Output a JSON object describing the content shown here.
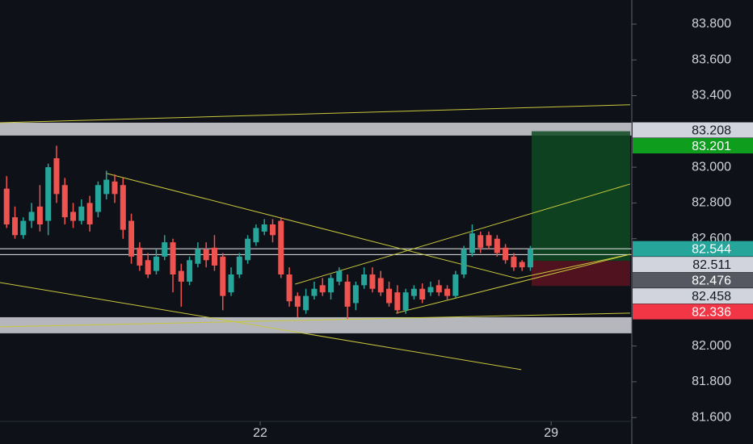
{
  "chart_data": {
    "type": "candlestick",
    "background": "#0f1118",
    "up_color": "#26a69a",
    "down_color": "#ef5350",
    "xlim": [
      15.74,
      30.94
    ],
    "xticks": [
      22,
      29
    ],
    "ylim": [
      81.452,
      83.935
    ],
    "yticks": [
      {
        "value": 83.8,
        "label": "83.800"
      },
      {
        "value": 83.6,
        "label": "83.600"
      },
      {
        "value": 83.4,
        "label": "83.400"
      },
      {
        "value": 83.0,
        "label": "83.000"
      },
      {
        "value": 82.8,
        "label": "82.800"
      },
      {
        "value": 82.6,
        "label": "82.600"
      },
      {
        "value": 82.0,
        "label": "82.000"
      },
      {
        "value": 81.8,
        "label": "81.800"
      },
      {
        "value": 81.6,
        "label": "81.600"
      }
    ],
    "x": [
      15.9,
      16.1,
      16.3,
      16.5,
      16.7,
      16.9,
      17.1,
      17.3,
      17.5,
      17.7,
      17.9,
      18.1,
      18.3,
      18.5,
      18.7,
      18.9,
      19.1,
      19.3,
      19.5,
      19.7,
      19.9,
      20.1,
      20.3,
      20.5,
      20.7,
      20.9,
      21.1,
      21.3,
      21.5,
      21.7,
      21.9,
      22.1,
      22.3,
      22.5,
      22.7,
      22.9,
      23.1,
      23.3,
      23.5,
      23.7,
      23.9,
      24.1,
      24.3,
      24.5,
      24.7,
      24.9,
      25.1,
      25.3,
      25.5,
      25.7,
      25.9,
      26.1,
      26.3,
      26.5,
      26.7,
      26.9,
      27.1,
      27.3,
      27.5,
      27.7,
      27.9,
      28.1,
      28.3,
      28.5
    ],
    "open": [
      82.88,
      82.72,
      82.62,
      82.7,
      82.78,
      82.7,
      83.05,
      82.9,
      82.75,
      82.7,
      82.8,
      82.75,
      82.85,
      82.92,
      82.9,
      82.7,
      82.55,
      82.48,
      82.42,
      82.5,
      82.58,
      82.42,
      82.36,
      82.46,
      82.54,
      82.55,
      82.5,
      82.3,
      82.4,
      82.48,
      82.58,
      82.64,
      82.68,
      82.7,
      82.4,
      82.28,
      82.2,
      82.28,
      82.34,
      82.3,
      82.36,
      82.36,
      82.24,
      82.34,
      82.4,
      82.38,
      82.32,
      82.3,
      82.2,
      82.28,
      82.32,
      82.3,
      82.34,
      82.32,
      82.28,
      82.4,
      82.52,
      82.62,
      82.62,
      82.6,
      82.55,
      82.5,
      82.47,
      82.44
    ],
    "high": [
      82.95,
      82.78,
      82.72,
      82.8,
      82.9,
      83.02,
      83.12,
      82.94,
      82.8,
      82.82,
      82.84,
      82.92,
      82.98,
      82.96,
      82.94,
      82.74,
      82.58,
      82.52,
      82.54,
      82.62,
      82.6,
      82.46,
      82.5,
      82.58,
      82.58,
      82.62,
      82.52,
      82.44,
      82.52,
      82.62,
      82.68,
      82.71,
      82.71,
      82.72,
      82.44,
      82.3,
      82.32,
      82.36,
      82.38,
      82.4,
      82.44,
      82.4,
      82.36,
      82.44,
      82.44,
      82.42,
      82.36,
      82.34,
      82.32,
      82.34,
      82.35,
      82.36,
      82.37,
      82.34,
      82.42,
      82.56,
      82.68,
      82.64,
      82.64,
      82.62,
      82.57,
      82.52,
      82.48,
      82.56
    ],
    "low": [
      82.66,
      82.6,
      82.6,
      82.66,
      82.64,
      82.62,
      82.8,
      82.68,
      82.66,
      82.68,
      82.64,
      82.72,
      82.82,
      82.8,
      82.6,
      82.46,
      82.42,
      82.38,
      82.4,
      82.48,
      82.3,
      82.22,
      82.34,
      82.44,
      82.44,
      82.42,
      82.2,
      82.28,
      82.38,
      82.46,
      82.56,
      82.62,
      82.58,
      82.38,
      82.22,
      82.16,
      82.18,
      82.26,
      82.28,
      82.26,
      82.34,
      82.15,
      82.2,
      82.32,
      82.3,
      82.28,
      82.22,
      82.18,
      82.18,
      82.26,
      82.24,
      82.28,
      82.28,
      82.26,
      82.27,
      82.38,
      82.5,
      82.52,
      82.54,
      82.5,
      82.46,
      82.42,
      82.42,
      82.42
    ],
    "close": [
      82.68,
      82.62,
      82.7,
      82.75,
      82.68,
      83.0,
      82.85,
      82.72,
      82.7,
      82.78,
      82.68,
      82.9,
      82.93,
      82.85,
      82.65,
      82.5,
      82.45,
      82.4,
      82.5,
      82.58,
      82.4,
      82.36,
      82.48,
      82.54,
      82.48,
      82.45,
      82.28,
      82.4,
      82.5,
      82.6,
      82.66,
      82.68,
      82.62,
      82.4,
      82.25,
      82.22,
      82.28,
      82.32,
      82.3,
      82.38,
      82.42,
      82.22,
      82.34,
      82.4,
      82.32,
      82.3,
      82.24,
      82.2,
      82.3,
      82.32,
      82.26,
      82.33,
      82.3,
      82.28,
      82.4,
      82.54,
      82.63,
      82.55,
      82.56,
      82.52,
      82.48,
      82.44,
      82.44,
      82.54
    ],
    "zones": [
      {
        "low": 83.177,
        "high": 83.249,
        "color": "#c8cacf"
      },
      {
        "low": 82.071,
        "high": 82.161,
        "color": "#c8cacf"
      }
    ],
    "hlines": [
      82.544,
      82.511
    ],
    "trendlines": [
      {
        "x": [
          15.74,
          30.9
        ],
        "y": [
          83.249,
          83.349
        ]
      },
      {
        "x": [
          18.31,
          28.18
        ],
        "y": [
          82.965,
          82.378
        ]
      },
      {
        "x": [
          15.74,
          28.28
        ],
        "y": [
          82.355,
          81.868
        ]
      },
      {
        "x": [
          22.84,
          30.9
        ],
        "y": [
          82.346,
          82.906
        ]
      },
      {
        "x": [
          25.27,
          30.9
        ],
        "y": [
          82.184,
          82.513
        ]
      },
      {
        "x": [
          28.18,
          30.9
        ],
        "y": [
          82.378,
          82.513
        ]
      },
      {
        "x": [
          15.74,
          30.9
        ],
        "y": [
          82.107,
          82.184
        ]
      }
    ],
    "position": {
      "x": [
        28.53,
        30.9
      ],
      "target": 83.201,
      "entry": 82.476,
      "stop": 82.336
    },
    "price_labels": [
      {
        "value": 83.208,
        "color": "#d1d4dc",
        "text_color": "#131722"
      },
      {
        "value": 83.201,
        "color": "#0f9d1e",
        "text_color": "#ffffff"
      },
      {
        "value": 82.544,
        "color": "#26a69a",
        "text_color": "#ffffff"
      },
      {
        "value": 82.511,
        "color": "#d1d4dc",
        "text_color": "#131722"
      },
      {
        "value": 82.476,
        "color": "#555861",
        "text_color": "#ffffff"
      },
      {
        "value": 82.458,
        "color": "#d1d4dc",
        "text_color": "#131722"
      },
      {
        "value": 82.336,
        "color": "#f23645",
        "text_color": "#ffffff"
      }
    ]
  }
}
